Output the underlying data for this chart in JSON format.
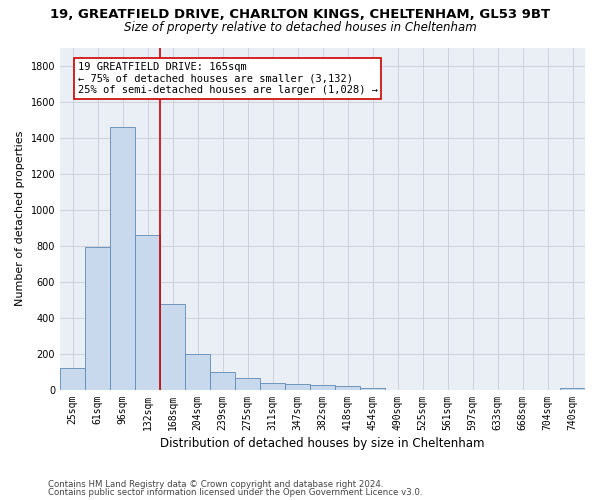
{
  "title1": "19, GREATFIELD DRIVE, CHARLTON KINGS, CHELTENHAM, GL53 9BT",
  "title2": "Size of property relative to detached houses in Cheltenham",
  "xlabel": "Distribution of detached houses by size in Cheltenham",
  "ylabel": "Number of detached properties",
  "footnote1": "Contains HM Land Registry data © Crown copyright and database right 2024.",
  "footnote2": "Contains public sector information licensed under the Open Government Licence v3.0.",
  "categories": [
    "25sqm",
    "61sqm",
    "96sqm",
    "132sqm",
    "168sqm",
    "204sqm",
    "239sqm",
    "275sqm",
    "311sqm",
    "347sqm",
    "382sqm",
    "418sqm",
    "454sqm",
    "490sqm",
    "525sqm",
    "561sqm",
    "597sqm",
    "633sqm",
    "668sqm",
    "704sqm",
    "740sqm"
  ],
  "values": [
    120,
    795,
    1460,
    860,
    475,
    200,
    100,
    65,
    40,
    35,
    30,
    20,
    10,
    0,
    0,
    0,
    0,
    0,
    0,
    0,
    10
  ],
  "bar_color": "#c9d9ed",
  "bar_edge_color": "#5f8ab5",
  "vline_index": 4,
  "vline_color": "#cc0000",
  "annotation_text": "19 GREATFIELD DRIVE: 165sqm\n← 75% of detached houses are smaller (3,132)\n25% of semi-detached houses are larger (1,028) →",
  "annotation_box_color": "#cc0000",
  "ylim": [
    0,
    1900
  ],
  "yticks": [
    0,
    200,
    400,
    600,
    800,
    1000,
    1200,
    1400,
    1600,
    1800
  ],
  "grid_color": "#c8cdd6",
  "bg_color": "#eaeff6",
  "title1_fontsize": 9.5,
  "title2_fontsize": 8.5,
  "annotation_fontsize": 7.5,
  "ylabel_fontsize": 8,
  "xlabel_fontsize": 8.5,
  "tick_fontsize": 7
}
